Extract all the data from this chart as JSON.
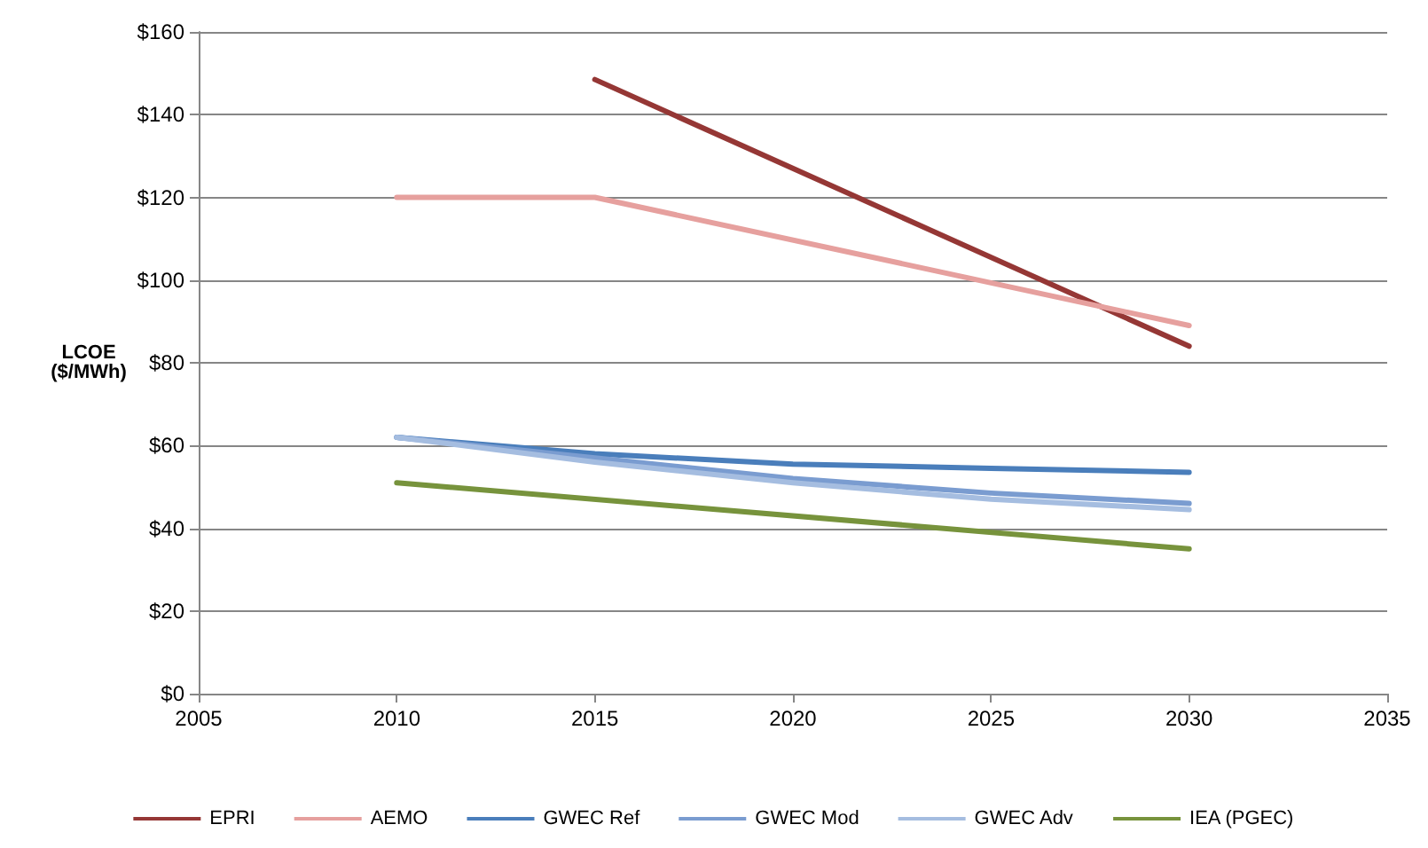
{
  "chart_data": {
    "type": "line",
    "ylabel": "LCOE\n($/MWh)",
    "x": [
      2010,
      2015,
      2020,
      2025,
      2030
    ],
    "series": [
      {
        "name": "EPRI",
        "color": "#953735",
        "values": [
          null,
          148.5,
          null,
          null,
          84
        ]
      },
      {
        "name": "AEMO",
        "color": "#e6a09e",
        "values": [
          120,
          120,
          null,
          null,
          89
        ]
      },
      {
        "name": "GWEC Ref",
        "color": "#4a7ebb",
        "values": [
          62,
          58,
          55.5,
          54.5,
          53.5
        ]
      },
      {
        "name": "GWEC Mod",
        "color": "#7a9cd0",
        "values": [
          62,
          57,
          52,
          48.5,
          46
        ]
      },
      {
        "name": "GWEC Adv",
        "color": "#a5bde0",
        "values": [
          62,
          56,
          51,
          47,
          44.5
        ]
      },
      {
        "name": "IEA (PGEC)",
        "color": "#77933c",
        "values": [
          51,
          null,
          null,
          null,
          35
        ]
      }
    ],
    "xlim": [
      2005,
      2035
    ],
    "xticks": [
      2005,
      2010,
      2015,
      2020,
      2025,
      2030,
      2035
    ],
    "ylim": [
      0,
      160
    ],
    "yticks": [
      {
        "value": 0,
        "label": "$0"
      },
      {
        "value": 20,
        "label": "$20"
      },
      {
        "value": 40,
        "label": "$40"
      },
      {
        "value": 60,
        "label": "$60"
      },
      {
        "value": 80,
        "label": "$80"
      },
      {
        "value": 100,
        "label": "$100"
      },
      {
        "value": 120,
        "label": "$120"
      },
      {
        "value": 140,
        "label": "$140"
      },
      {
        "value": 160,
        "label": "$160"
      }
    ],
    "grid": "y",
    "legend": "bottom",
    "marker": "none",
    "line_style": "solid"
  }
}
